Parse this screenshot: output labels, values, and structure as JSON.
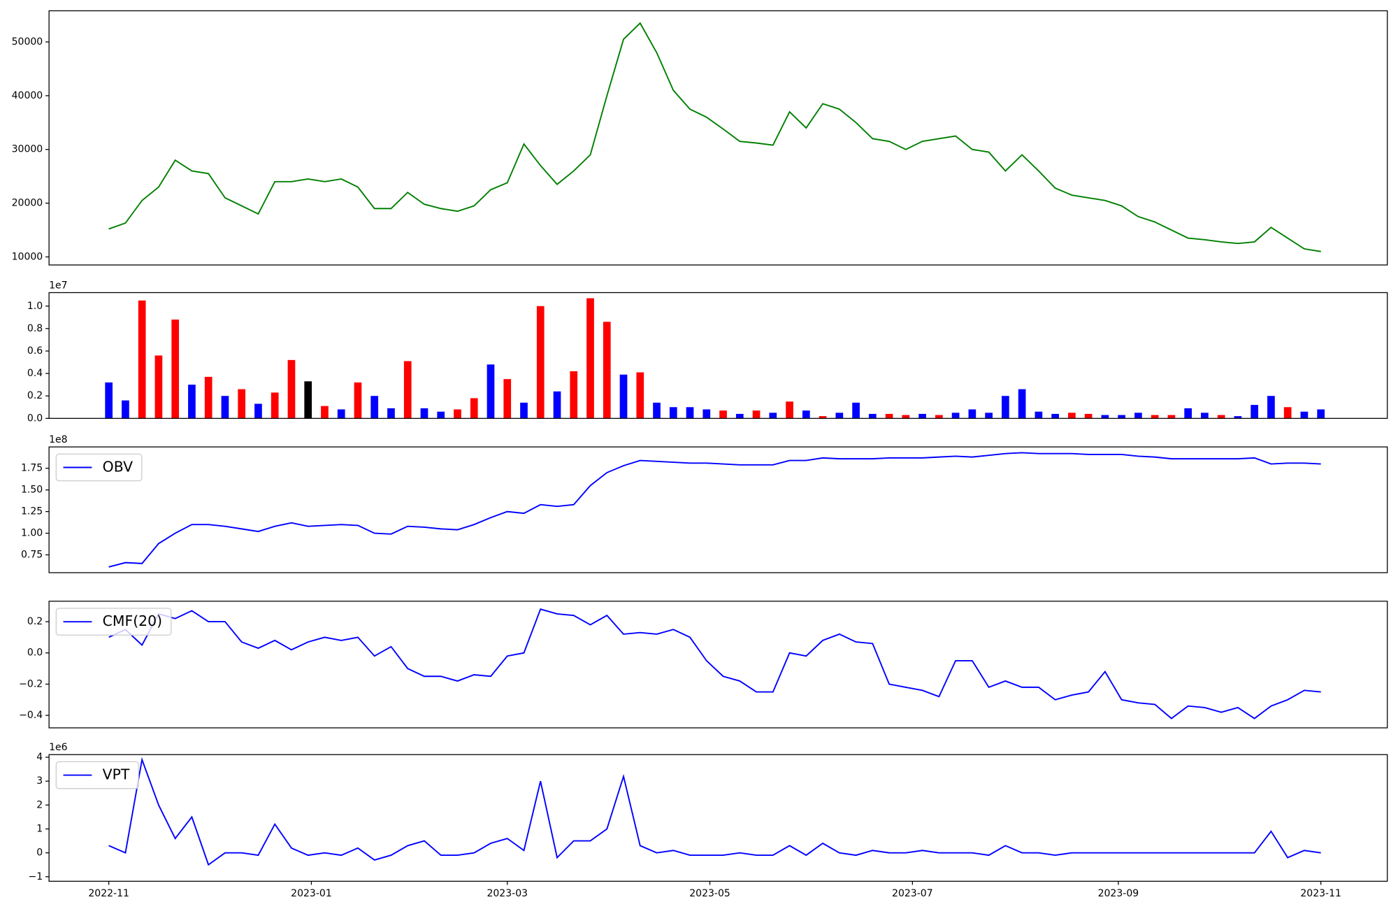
{
  "chart_data": [
    {
      "type": "line",
      "color": "#008000",
      "x": [
        0,
        5,
        10,
        15,
        20,
        25,
        30,
        35,
        40,
        45,
        50,
        55,
        60,
        65,
        70,
        75,
        80,
        85,
        90,
        95,
        100,
        105,
        110,
        115,
        120,
        125,
        130,
        135,
        140,
        145,
        150,
        155,
        160,
        165,
        170,
        175,
        180,
        185,
        190,
        195,
        200,
        205,
        210,
        215,
        220,
        225,
        230,
        235,
        240,
        245,
        250,
        255,
        260,
        265,
        270,
        275,
        280,
        285,
        290,
        295,
        300,
        305,
        310,
        315,
        320,
        325,
        330,
        335,
        340,
        345,
        350,
        355,
        360,
        365
      ],
      "values": [
        15200,
        16300,
        20500,
        23000,
        28000,
        26000,
        25500,
        21000,
        19500,
        18000,
        24000,
        24000,
        24500,
        24000,
        24500,
        23000,
        19000,
        19000,
        22000,
        19800,
        19000,
        18500,
        19500,
        22500,
        23800,
        31000,
        27000,
        23500,
        26000,
        29000,
        40000,
        50500,
        53500,
        48000,
        41000,
        37500,
        36000,
        33800,
        31500,
        31200,
        30800,
        37000,
        34000,
        38500,
        37500,
        35000,
        32000,
        31500,
        30000,
        31500,
        32000,
        32500,
        30000,
        29500,
        26000,
        29000,
        26000,
        22800,
        21500,
        21000,
        20500,
        19500,
        17500,
        16500,
        15000,
        13500,
        13200,
        12800,
        12500,
        12800,
        15500,
        13500,
        11500,
        11000
      ],
      "xlim": [
        -18,
        385
      ],
      "ylim": [
        8500,
        55800
      ],
      "yticks": [
        10000,
        20000,
        30000,
        40000,
        50000
      ]
    },
    {
      "type": "bar",
      "offset_label": "1e7",
      "x": [
        0,
        5,
        10,
        15,
        20,
        25,
        30,
        35,
        40,
        45,
        50,
        55,
        60,
        65,
        70,
        75,
        80,
        85,
        90,
        95,
        100,
        105,
        110,
        115,
        120,
        125,
        130,
        135,
        140,
        145,
        150,
        155,
        160,
        165,
        170,
        175,
        180,
        185,
        190,
        195,
        200,
        205,
        210,
        215,
        220,
        225,
        230,
        235,
        240,
        245,
        250,
        255,
        260,
        265,
        270,
        275,
        280,
        285,
        290,
        295,
        300,
        305,
        310,
        315,
        320,
        325,
        330,
        335,
        340,
        345,
        350,
        355,
        360,
        365
      ],
      "values": [
        3200000,
        1600000,
        10500000,
        5600000,
        8800000,
        3000000,
        3700000,
        2000000,
        2600000,
        1300000,
        2300000,
        5200000,
        3300000,
        1100000,
        800000,
        3200000,
        2000000,
        900000,
        5100000,
        900000,
        600000,
        800000,
        1800000,
        4800000,
        3500000,
        1400000,
        10000000,
        2400000,
        4200000,
        10700000,
        8600000,
        3900000,
        4100000,
        1400000,
        1000000,
        1000000,
        800000,
        700000,
        400000,
        700000,
        500000,
        1500000,
        700000,
        200000,
        500000,
        1400000,
        400000,
        400000,
        300000,
        400000,
        300000,
        500000,
        800000,
        500000,
        2000000,
        2600000,
        600000,
        400000,
        500000,
        400000,
        300000,
        300000,
        500000,
        300000,
        300000,
        900000,
        500000,
        300000,
        200000,
        1200000,
        2000000,
        1000000,
        600000,
        800000
      ],
      "colors": [
        "#0000ff",
        "#0000ff",
        "#ff0000",
        "#ff0000",
        "#ff0000",
        "#0000ff",
        "#ff0000",
        "#0000ff",
        "#ff0000",
        "#0000ff",
        "#ff0000",
        "#ff0000",
        "#000000",
        "#ff0000",
        "#0000ff",
        "#ff0000",
        "#0000ff",
        "#0000ff",
        "#ff0000",
        "#0000ff",
        "#0000ff",
        "#ff0000",
        "#ff0000",
        "#0000ff",
        "#ff0000",
        "#0000ff",
        "#ff0000",
        "#0000ff",
        "#ff0000",
        "#ff0000",
        "#ff0000",
        "#0000ff",
        "#ff0000",
        "#0000ff",
        "#0000ff",
        "#0000ff",
        "#0000ff",
        "#ff0000",
        "#0000ff",
        "#ff0000",
        "#0000ff",
        "#ff0000",
        "#0000ff",
        "#ff0000",
        "#0000ff",
        "#0000ff",
        "#0000ff",
        "#ff0000",
        "#ff0000",
        "#0000ff",
        "#ff0000",
        "#0000ff",
        "#0000ff",
        "#0000ff",
        "#0000ff",
        "#0000ff",
        "#0000ff",
        "#0000ff",
        "#ff0000",
        "#ff0000",
        "#0000ff",
        "#0000ff",
        "#0000ff",
        "#ff0000",
        "#ff0000",
        "#0000ff",
        "#0000ff",
        "#ff0000",
        "#0000ff",
        "#0000ff",
        "#0000ff",
        "#ff0000",
        "#0000ff",
        "#0000ff"
      ],
      "xlim": [
        -18,
        385
      ],
      "ylim": [
        0,
        11200000
      ],
      "yticks": [
        {
          "value": 0,
          "label": "0.0"
        },
        {
          "value": 2000000,
          "label": "0.2"
        },
        {
          "value": 4000000,
          "label": "0.4"
        },
        {
          "value": 6000000,
          "label": "0.6"
        },
        {
          "value": 8000000,
          "label": "0.8"
        },
        {
          "value": 10000000,
          "label": "1.0"
        }
      ]
    },
    {
      "type": "line",
      "offset_label": "1e8",
      "legend": "upper left",
      "x": [
        0,
        5,
        10,
        15,
        20,
        25,
        30,
        35,
        40,
        45,
        50,
        55,
        60,
        65,
        70,
        75,
        80,
        85,
        90,
        95,
        100,
        105,
        110,
        115,
        120,
        125,
        130,
        135,
        140,
        145,
        150,
        155,
        160,
        165,
        170,
        175,
        180,
        185,
        190,
        195,
        200,
        205,
        210,
        215,
        220,
        225,
        230,
        235,
        240,
        245,
        250,
        255,
        260,
        265,
        270,
        275,
        280,
        285,
        290,
        295,
        300,
        305,
        310,
        315,
        320,
        325,
        330,
        335,
        340,
        345,
        350,
        355,
        360,
        365
      ],
      "series": [
        {
          "name": "OBV",
          "color": "#0000ff",
          "values": [
            61000000,
            66000000,
            65000000,
            88000000,
            100000000,
            110000000,
            110000000,
            108000000,
            105000000,
            102000000,
            108000000,
            112000000,
            108000000,
            109000000,
            110000000,
            109000000,
            100000000,
            99000000,
            108000000,
            107000000,
            105000000,
            104000000,
            110000000,
            118000000,
            125000000,
            123000000,
            133000000,
            131000000,
            133000000,
            155000000,
            170000000,
            178000000,
            184000000,
            183000000,
            182000000,
            181000000,
            181000000,
            180000000,
            179000000,
            179000000,
            179000000,
            184000000,
            184000000,
            187000000,
            186000000,
            186000000,
            186000000,
            187000000,
            187000000,
            187000000,
            188000000,
            189000000,
            188000000,
            190000000,
            192000000,
            193000000,
            192000000,
            192000000,
            192000000,
            191000000,
            191000000,
            191000000,
            189000000,
            188000000,
            186000000,
            186000000,
            186000000,
            186000000,
            186000000,
            187000000,
            180000000,
            181000000,
            181000000,
            180000000
          ]
        }
      ],
      "xlim": [
        -18,
        385
      ],
      "ylim": [
        54400000,
        199700000
      ],
      "yticks": [
        {
          "value": 75000000,
          "label": "0.75"
        },
        {
          "value": 100000000,
          "label": "1.00"
        },
        {
          "value": 125000000,
          "label": "1.25"
        },
        {
          "value": 150000000,
          "label": "1.50"
        },
        {
          "value": 175000000,
          "label": "1.75"
        }
      ]
    },
    {
      "type": "line",
      "legend": "upper left",
      "x": [
        0,
        5,
        10,
        15,
        20,
        25,
        30,
        35,
        40,
        45,
        50,
        55,
        60,
        65,
        70,
        75,
        80,
        85,
        90,
        95,
        100,
        105,
        110,
        115,
        120,
        125,
        130,
        135,
        140,
        145,
        150,
        155,
        160,
        165,
        170,
        175,
        180,
        185,
        190,
        195,
        200,
        205,
        210,
        215,
        220,
        225,
        230,
        235,
        240,
        245,
        250,
        255,
        260,
        265,
        270,
        275,
        280,
        285,
        290,
        295,
        300,
        305,
        310,
        315,
        320,
        325,
        330,
        335,
        340,
        345,
        350,
        355,
        360,
        365
      ],
      "series": [
        {
          "name": "CMF(20)",
          "color": "#0000ff",
          "values": [
            0.1,
            0.15,
            0.05,
            0.25,
            0.22,
            0.27,
            0.2,
            0.2,
            0.07,
            0.03,
            0.08,
            0.02,
            0.07,
            0.1,
            0.08,
            0.1,
            -0.02,
            0.04,
            -0.1,
            -0.15,
            -0.15,
            -0.18,
            -0.14,
            -0.15,
            -0.02,
            0.0,
            0.28,
            0.25,
            0.24,
            0.18,
            0.24,
            0.12,
            0.13,
            0.12,
            0.15,
            0.1,
            -0.05,
            -0.15,
            -0.18,
            -0.25,
            -0.25,
            0.0,
            -0.02,
            0.08,
            0.12,
            0.07,
            0.06,
            -0.2,
            -0.22,
            -0.24,
            -0.28,
            -0.05,
            -0.05,
            -0.22,
            -0.18,
            -0.22,
            -0.22,
            -0.3,
            -0.27,
            -0.25,
            -0.12,
            -0.3,
            -0.32,
            -0.33,
            -0.42,
            -0.34,
            -0.35,
            -0.38,
            -0.35,
            -0.42,
            -0.34,
            -0.3,
            -0.24,
            -0.25
          ]
        }
      ],
      "xlim": [
        -18,
        385
      ],
      "ylim": [
        -0.48,
        0.331
      ],
      "yticks": [
        {
          "value": -0.4,
          "label": "−0.4"
        },
        {
          "value": -0.2,
          "label": "−0.2"
        },
        {
          "value": 0,
          "label": "0.0"
        },
        {
          "value": 0.2,
          "label": "0.2"
        }
      ]
    },
    {
      "type": "line",
      "offset_label": "1e6",
      "legend": "upper left",
      "x": [
        0,
        5,
        10,
        15,
        20,
        25,
        30,
        35,
        40,
        45,
        50,
        55,
        60,
        65,
        70,
        75,
        80,
        85,
        90,
        95,
        100,
        105,
        110,
        115,
        120,
        125,
        130,
        135,
        140,
        145,
        150,
        155,
        160,
        165,
        170,
        175,
        180,
        185,
        190,
        195,
        200,
        205,
        210,
        215,
        220,
        225,
        230,
        235,
        240,
        245,
        250,
        255,
        260,
        265,
        270,
        275,
        280,
        285,
        290,
        295,
        300,
        305,
        310,
        315,
        320,
        325,
        330,
        335,
        340,
        345,
        350,
        355,
        360,
        365
      ],
      "series": [
        {
          "name": "VPT",
          "color": "#0000ff",
          "values": [
            300000,
            0,
            3900000,
            2000000,
            600000,
            1500000,
            -500000,
            0,
            0,
            -100000,
            1200000,
            200000,
            -100000,
            0,
            -100000,
            200000,
            -300000,
            -100000,
            300000,
            500000,
            -100000,
            -100000,
            0,
            400000,
            600000,
            100000,
            3000000,
            -200000,
            500000,
            500000,
            1000000,
            3200000,
            300000,
            0,
            100000,
            -100000,
            -100000,
            -100000,
            0,
            -100000,
            -100000,
            300000,
            -100000,
            400000,
            0,
            -100000,
            100000,
            0,
            0,
            100000,
            0,
            0,
            0,
            -100000,
            300000,
            0,
            0,
            -100000,
            0,
            0,
            0,
            0,
            0,
            0,
            0,
            0,
            0,
            0,
            0,
            0,
            900000,
            -200000,
            100000,
            0
          ]
        }
      ],
      "xlim": [
        -18,
        385
      ],
      "ylim": [
        -1190000,
        4110000
      ],
      "yticks": [
        {
          "value": -1000000,
          "label": "−1"
        },
        {
          "value": 0,
          "label": "0"
        },
        {
          "value": 1000000,
          "label": "1"
        },
        {
          "value": 2000000,
          "label": "2"
        },
        {
          "value": 3000000,
          "label": "3"
        },
        {
          "value": 4000000,
          "label": "4"
        }
      ],
      "xticks": [
        {
          "value": 0,
          "label": "2022-11"
        },
        {
          "value": 61,
          "label": "2023-01"
        },
        {
          "value": 120,
          "label": "2023-03"
        },
        {
          "value": 181,
          "label": "2023-05"
        },
        {
          "value": 242,
          "label": "2023-07"
        },
        {
          "value": 304,
          "label": "2023-09"
        },
        {
          "value": 365,
          "label": "2023-11"
        }
      ]
    }
  ]
}
